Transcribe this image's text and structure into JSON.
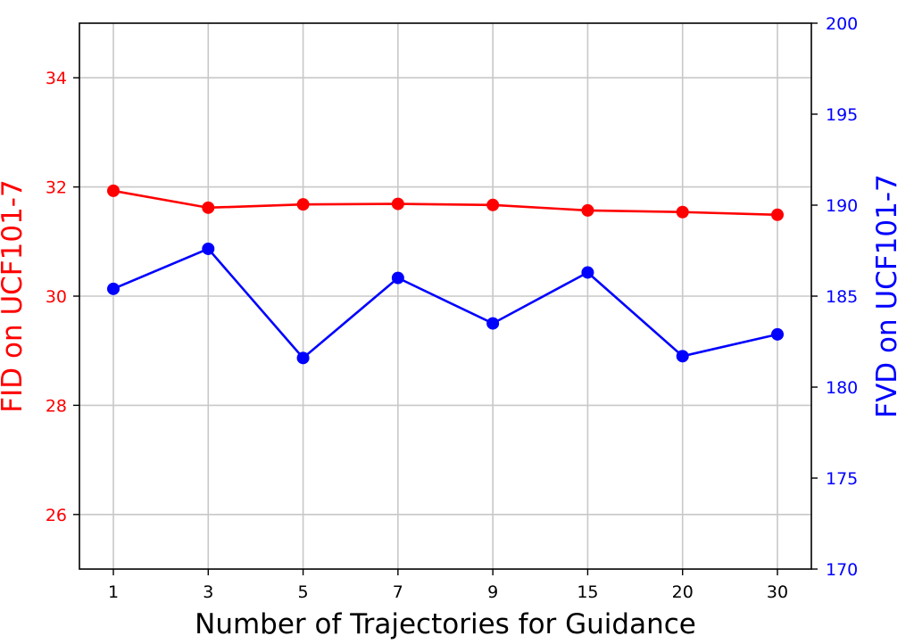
{
  "chart_data": {
    "type": "line",
    "title": "",
    "xlabel": "Number of Trajectories for Guidance",
    "categories": [
      "1",
      "3",
      "5",
      "7",
      "9",
      "15",
      "20",
      "30"
    ],
    "y_left": {
      "label": "FID on UCF101-7",
      "color": "#ff0000",
      "lim": [
        25,
        35
      ],
      "ticks": [
        26,
        28,
        30,
        32,
        34
      ]
    },
    "y_right": {
      "label": "FVD on UCF101-7",
      "color": "#0000ff",
      "lim": [
        170,
        200
      ],
      "ticks": [
        170,
        175,
        180,
        185,
        190,
        195,
        200
      ]
    },
    "grid": true,
    "series": [
      {
        "axis": "left",
        "color": "#ff0000",
        "marker": "circle",
        "values": [
          31.93,
          31.62,
          31.68,
          31.69,
          31.67,
          31.57,
          31.54,
          31.49
        ]
      },
      {
        "axis": "right",
        "color": "#0000ff",
        "marker": "circle",
        "values": [
          185.4,
          187.6,
          181.6,
          186.0,
          183.5,
          186.3,
          181.7,
          182.9
        ]
      }
    ]
  }
}
